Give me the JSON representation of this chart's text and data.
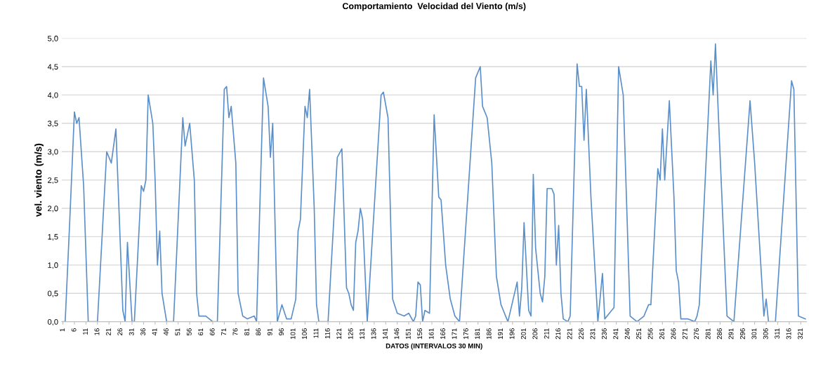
{
  "chart_data": {
    "type": "line",
    "title": "Comportamiento  Velocidad del Viento (m/s)",
    "xlabel": "DATOS (INTERVALOS 30 MIN)",
    "ylabel": "vel. viento (m/s)",
    "xlim": [
      0.5,
      323.5
    ],
    "xticks": [
      1,
      6,
      11,
      16,
      21,
      26,
      31,
      36,
      41,
      46,
      51,
      56,
      61,
      66,
      71,
      76,
      81,
      86,
      91,
      96,
      101,
      106,
      111,
      116,
      121,
      126,
      131,
      136,
      141,
      146,
      151,
      156,
      161,
      166,
      171,
      176,
      181,
      186,
      191,
      196,
      201,
      206,
      211,
      216,
      221,
      226,
      231,
      236,
      241,
      246,
      251,
      256,
      261,
      266,
      271,
      276,
      281,
      286,
      291,
      296,
      301,
      306,
      311,
      316,
      321
    ],
    "ylim": [
      0,
      5
    ],
    "yticks": [
      {
        "value": 0,
        "label": "0,0"
      },
      {
        "value": 0.5,
        "label": "0,5"
      },
      {
        "value": 1,
        "label": "1,0"
      },
      {
        "value": 1.5,
        "label": "1,5"
      },
      {
        "value": 2,
        "label": "2,0"
      },
      {
        "value": 2.5,
        "label": "2,5"
      },
      {
        "value": 3,
        "label": "3,0"
      },
      {
        "value": 3.5,
        "label": "3,5"
      },
      {
        "value": 4,
        "label": "4,0"
      },
      {
        "value": 4.5,
        "label": "4,5"
      },
      {
        "value": 5,
        "label": "5,0"
      }
    ],
    "grid": "y",
    "legend": false,
    "marker": "none",
    "line_style": "solid",
    "series": [
      {
        "color": "#5b8fc9",
        "x": [
          1,
          2,
          4,
          6,
          7,
          8,
          10,
          12,
          15,
          16,
          20,
          22,
          24,
          27,
          28,
          29,
          31,
          32,
          35,
          36,
          37,
          38,
          40,
          41,
          42,
          43,
          44,
          46,
          49,
          53,
          54,
          56,
          58,
          59,
          60,
          63,
          66,
          68,
          71,
          72,
          73,
          74,
          76,
          77,
          78,
          79,
          81,
          84,
          85,
          88,
          90,
          91,
          92,
          94,
          96,
          98,
          100,
          102,
          103,
          104,
          106,
          107,
          108,
          110,
          111,
          112,
          116,
          120,
          122,
          124,
          125,
          126,
          127,
          128,
          129,
          130,
          131,
          133,
          139,
          140,
          142,
          144,
          146,
          149,
          151,
          153,
          154,
          155,
          156,
          157,
          158,
          160,
          162,
          164,
          165,
          167,
          169,
          171,
          173,
          180,
          182,
          183,
          185,
          187,
          189,
          191,
          192,
          194,
          198,
          199,
          200,
          201,
          203,
          204,
          205,
          206,
          208,
          209,
          210,
          211,
          213,
          214,
          215,
          216,
          217,
          218,
          220,
          221,
          224,
          225,
          226,
          227,
          228,
          230,
          233,
          235,
          236,
          238,
          240,
          242,
          244,
          247,
          250,
          253,
          255,
          256,
          259,
          260,
          261,
          262,
          264,
          266,
          267,
          268,
          269,
          272,
          275,
          276,
          277,
          282,
          283,
          284,
          285,
          289,
          292,
          299,
          301,
          305,
          306,
          307,
          310,
          317,
          318,
          320,
          323
        ],
        "values": [
          0,
          0,
          1.8,
          3.7,
          3.5,
          3.6,
          2.4,
          0,
          0,
          0,
          3.0,
          2.8,
          3.4,
          0.2,
          0,
          1.4,
          0,
          0,
          2.4,
          2.3,
          2.5,
          4.0,
          3.5,
          2.5,
          1.0,
          1.6,
          0.5,
          0,
          0,
          3.6,
          3.1,
          3.5,
          2.5,
          0.5,
          0.1,
          0.1,
          0,
          0,
          4.1,
          4.15,
          3.6,
          3.8,
          2.8,
          0.5,
          0.3,
          0.1,
          0.05,
          0.1,
          0,
          4.3,
          3.8,
          2.9,
          3.5,
          0,
          0.3,
          0.05,
          0.05,
          0.4,
          1.6,
          1.8,
          3.8,
          3.6,
          4.1,
          2.0,
          0.3,
          0,
          0,
          2.9,
          3.05,
          0.6,
          0.5,
          0.3,
          0.2,
          1.4,
          1.6,
          2.0,
          1.8,
          0,
          4.0,
          4.05,
          3.6,
          0.4,
          0.15,
          0.1,
          0.15,
          0,
          0.1,
          0.7,
          0.65,
          0,
          0.2,
          0.15,
          3.65,
          2.2,
          2.15,
          1.0,
          0.4,
          0.1,
          0,
          4.3,
          4.5,
          3.8,
          3.6,
          2.8,
          0.8,
          0.3,
          0.2,
          0,
          0.7,
          0.1,
          0.6,
          1.75,
          0.2,
          0.1,
          2.6,
          1.3,
          0.5,
          0.35,
          0.8,
          2.35,
          2.35,
          2.25,
          1.0,
          1.7,
          0.5,
          0.05,
          0,
          0.1,
          4.55,
          4.15,
          4.15,
          3.2,
          4.1,
          2.2,
          0,
          0.85,
          0.05,
          0.15,
          0.25,
          4.5,
          4.0,
          0.1,
          0,
          0.1,
          0.3,
          0.3,
          2.7,
          2.5,
          3.4,
          2.5,
          3.9,
          2.2,
          0.9,
          0.7,
          0.05,
          0.05,
          0,
          0.1,
          0.3,
          4.6,
          4.0,
          4.9,
          3.9,
          0.1,
          0,
          3.9,
          2.8,
          0.1,
          0.4,
          0,
          0,
          4.25,
          4.1,
          0.1,
          0.05
        ]
      }
    ]
  }
}
